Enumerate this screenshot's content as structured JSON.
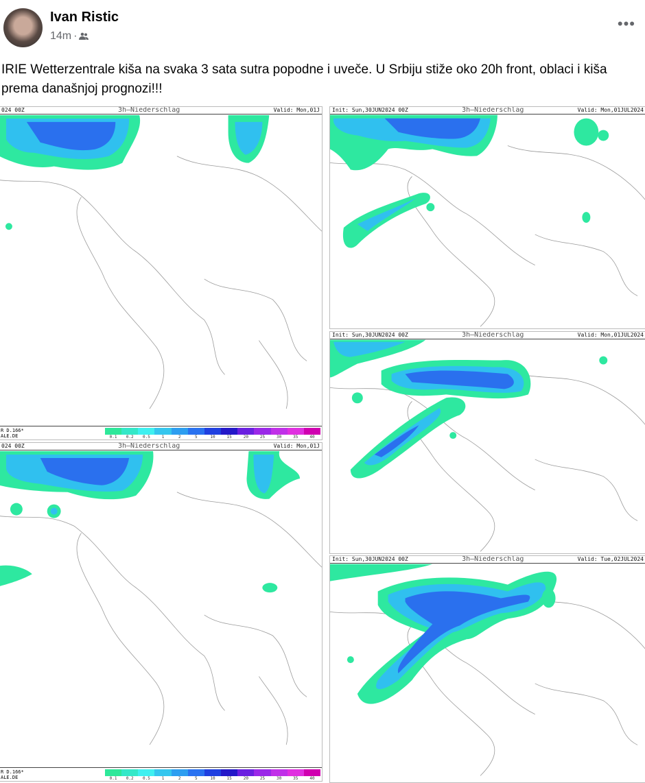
{
  "post": {
    "author": "Ivan Ristic",
    "time": "14m",
    "audience_icon": "friends-icon",
    "more_label": "•••",
    "text": "IRIE Wetterzentrale kiša na svaka 3 sata sutra popodne i uveče. U Srbiju stiže oko 20h front, oblaci i kiša prema današnjoj prognozi!!!"
  },
  "maps": [
    {
      "init": "024 00Z",
      "title": "3h–Niederschlag",
      "valid": "Valid: Mon,01J",
      "legend_l1": "R D.166*",
      "legend_l2": "ALE.DE"
    },
    {
      "init": "024 00Z",
      "title": "3h–Niederschlag",
      "valid": "Valid: Mon,01J",
      "legend_l1": "R D.166*",
      "legend_l2": "ALE.DE"
    },
    {
      "init": "Init: Sun,30JUN2024 00Z",
      "title": "3h–Niederschlag",
      "valid": "Valid: Mon,01JUL2024"
    },
    {
      "init": "Init: Sun,30JUN2024 00Z",
      "title": "3h–Niederschlag",
      "valid": "Valid: Mon,01JUL2024"
    },
    {
      "init": "Init: Sun,30JUN2024 00Z",
      "title": "3h–Niederschlag",
      "valid": "Valid: Tue,02JUL2024"
    }
  ],
  "legend_scale": {
    "values": [
      "0.1",
      "0.2",
      "0.5",
      "1",
      "2",
      "5",
      "10",
      "15",
      "20",
      "25",
      "30",
      "35",
      "40"
    ],
    "colors": [
      "#2ee89a",
      "#34e8c8",
      "#3ff0f0",
      "#35c6ee",
      "#2d9ef0",
      "#2a72f0",
      "#2040e0",
      "#2418c8",
      "#6a20e0",
      "#9a28e8",
      "#c030e8",
      "#e030e0",
      "#d000b0"
    ]
  },
  "colors": {
    "rain_light": "#2ee8a0",
    "rain_mid": "#30c8f0",
    "rain_heavy": "#2050e8",
    "coast": "#9a9a9a"
  }
}
